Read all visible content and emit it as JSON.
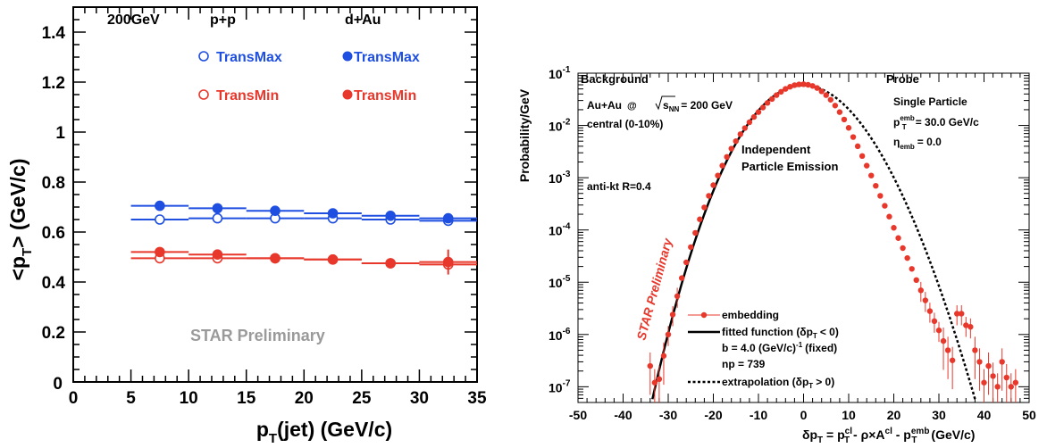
{
  "chart_data": [
    {
      "type": "scatter",
      "ylabel": "<p",
      "ylabel_sub": "T",
      "ylabel_tail": "> (GeV/c)",
      "xlabel": "p",
      "xlabel_sub": "T",
      "xlabel_tail": "(jet) (GeV/c)",
      "xlim": [
        0,
        35
      ],
      "ylim": [
        0,
        1.5
      ],
      "xticks": [
        0,
        5,
        10,
        15,
        20,
        25,
        30,
        35
      ],
      "yticks": [
        0.2,
        0.4,
        0.6,
        0.8,
        1,
        1.2,
        1.4
      ],
      "ytick_labels": [
        "0.2",
        "0.4",
        "0.6",
        "0.8",
        "1",
        "1.2",
        "1.4"
      ],
      "ytick_zero_label": "0",
      "annotations": {
        "energy": "200GeV",
        "pp": "p+p",
        "dau": "d+Au",
        "preliminary": "STAR Preliminary"
      },
      "series": [
        {
          "name": "TransMax",
          "group": "p+p",
          "color": "#1f4fe0",
          "filled": false,
          "x": [
            7.5,
            12.5,
            17.5,
            22.5,
            27.5,
            32.5
          ],
          "y": [
            0.65,
            0.655,
            0.655,
            0.655,
            0.65,
            0.645
          ],
          "yerr": [
            0.006,
            0.006,
            0.006,
            0.006,
            0.006,
            0.006
          ]
        },
        {
          "name": "TransMax",
          "group": "d+Au",
          "color": "#1f4fe0",
          "filled": true,
          "x": [
            7.5,
            12.5,
            17.5,
            22.5,
            27.5,
            32.5
          ],
          "y": [
            0.705,
            0.695,
            0.685,
            0.675,
            0.665,
            0.655
          ],
          "yerr": [
            0.008,
            0.008,
            0.008,
            0.01,
            0.012,
            0.015
          ]
        },
        {
          "name": "TransMin",
          "group": "p+p",
          "color": "#e8372b",
          "filled": false,
          "x": [
            7.5,
            12.5,
            17.5,
            22.5,
            27.5,
            32.5
          ],
          "y": [
            0.495,
            0.495,
            0.495,
            0.49,
            0.475,
            0.47
          ],
          "yerr": [
            0.006,
            0.006,
            0.006,
            0.006,
            0.008,
            0.01
          ]
        },
        {
          "name": "TransMin",
          "group": "d+Au",
          "color": "#e8372b",
          "filled": true,
          "x": [
            7.5,
            12.5,
            17.5,
            22.5,
            27.5,
            32.5
          ],
          "y": [
            0.52,
            0.51,
            0.495,
            0.49,
            0.475,
            0.48
          ],
          "yerr": [
            0.01,
            0.01,
            0.01,
            0.012,
            0.02,
            0.05
          ]
        }
      ]
    },
    {
      "type": "line",
      "log_y": true,
      "xlim": [
        -50,
        50
      ],
      "ylim": [
        5e-08,
        0.1
      ],
      "xticks": [
        -50,
        -40,
        -30,
        -20,
        -10,
        0,
        10,
        20,
        30,
        40,
        50
      ],
      "ylabel": "Probability/GeV",
      "xlabel": "δp_T = p_T^cl - ρ×A^cl - p_T^emb (GeV/c)",
      "ytick_labels": [
        {
          "base": "10",
          "exp": "-1"
        },
        {
          "base": "10",
          "exp": "-2"
        },
        {
          "base": "10",
          "exp": "-3"
        },
        {
          "base": "10",
          "exp": "-4"
        },
        {
          "base": "10",
          "exp": "-5"
        },
        {
          "base": "10",
          "exp": "-6"
        },
        {
          "base": "10",
          "exp": "-7"
        }
      ],
      "texts": {
        "background": "Background",
        "auau": "Au+Au",
        "at": "@",
        "s": "s",
        "nn": "NN",
        "energy": "= 200 GeV",
        "central": "central (0-10%)",
        "antikt": "anti-kt   R=0.4",
        "indep1": "Independent",
        "indep2": "Particle Emission",
        "probe": "Probe",
        "single": "Single Particle",
        "pt_p": "p",
        "pt_sup": "emb",
        "pt_sub": "T",
        "pt_val": "= 30.0 GeV/c",
        "eta": "η",
        "eta_sub": "emb",
        "eta_val": "= 0.0",
        "preliminary": "STAR Preliminary",
        "leg_embed": "embedding",
        "leg_fit": "fitted function (δp",
        "leg_fit_sub": "T",
        "leg_fit_tail": "< 0)",
        "leg_b": "b = 4.0 (GeV/c)",
        "leg_b_sup": "-1",
        "leg_b_tail": "(fixed)",
        "leg_np": "np = 739",
        "leg_extra": "extrapolation (δp",
        "leg_extra_sub": "T",
        "leg_extra_tail": "> 0)"
      },
      "fit": {
        "b": 4.0,
        "np": 739,
        "offset": 0.2
      },
      "series": [
        {
          "name": "embedding",
          "color": "#e8372b",
          "x": [
            -34,
            -33,
            -32,
            -31,
            -30,
            -29,
            -28,
            -27,
            -26,
            -25,
            -24,
            -23,
            -22,
            -21,
            -20,
            -19,
            -18,
            -17,
            -16,
            -15,
            -14,
            -13,
            -12,
            -11,
            -10,
            -9,
            -8,
            -7,
            -6,
            -5,
            -4,
            -3,
            -2,
            -1,
            0,
            1,
            2,
            3,
            4,
            5,
            6,
            7,
            8,
            9,
            10,
            11,
            12,
            13,
            14,
            15,
            16,
            17,
            18,
            19,
            20,
            21,
            22,
            23,
            24,
            25,
            26,
            27,
            28,
            29,
            30,
            31,
            32,
            33,
            34,
            35,
            36,
            37,
            38,
            39,
            40,
            41,
            42,
            43,
            44,
            45,
            46,
            47
          ],
          "y": [
            2.5e-07,
            1.2e-07,
            1.4e-07,
            3.9e-07,
            1e-06,
            2.4e-06,
            5.4e-06,
            1.2e-05,
            2.4e-05,
            4.7e-05,
            8.8e-05,
            0.00016,
            0.00027,
            0.00045,
            0.00072,
            0.0011,
            0.0017,
            0.0025,
            0.0036,
            0.005,
            0.0068,
            0.0089,
            0.0115,
            0.0145,
            0.018,
            0.022,
            0.027,
            0.032,
            0.038,
            0.044,
            0.05,
            0.055,
            0.059,
            0.061,
            0.0615,
            0.06,
            0.057,
            0.052,
            0.045,
            0.038,
            0.031,
            0.024,
            0.018,
            0.013,
            0.009,
            0.006,
            0.004,
            0.0026,
            0.0017,
            0.0011,
            0.0007,
            0.00045,
            0.00029,
            0.00018,
            0.00011,
            7e-05,
            4.5e-05,
            2.9e-05,
            1.8e-05,
            1.1e-05,
            7e-06,
            4.5e-06,
            2.8e-06,
            1.8e-06,
            1.2e-06,
            7.5e-07,
            5e-07,
            3.2e-07,
            2.5e-06,
            2.5e-06,
            1.5e-06,
            1.4e-06,
            5e-07,
            3e-07,
            1.2e-07,
            2.5e-07,
            1.6e-07,
            1e-07,
            3e-07,
            1.5e-07,
            1e-07,
            1.2e-07
          ]
        },
        {
          "name": "fitted function",
          "color": "#000000",
          "style": "solid"
        },
        {
          "name": "extrapolation",
          "color": "#000000",
          "style": "dotted"
        }
      ]
    }
  ]
}
